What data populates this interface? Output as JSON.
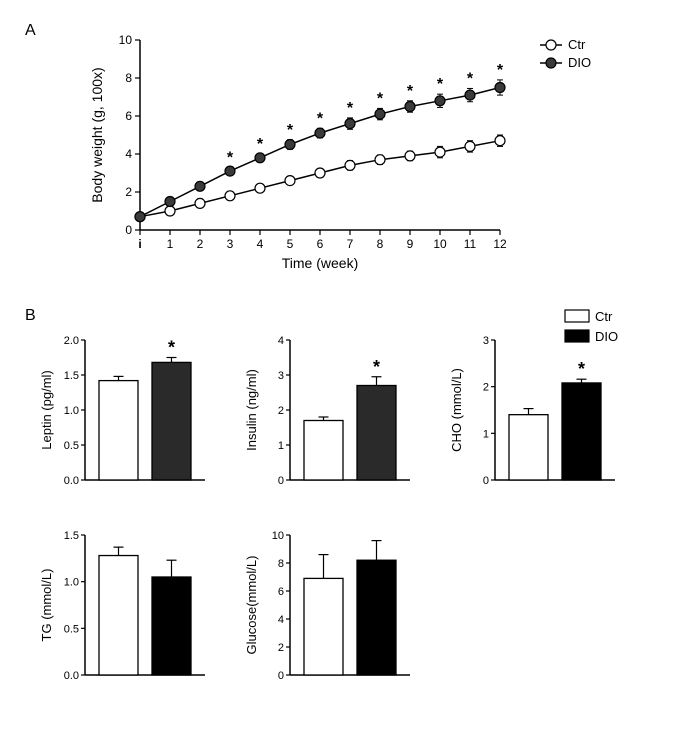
{
  "panelA": {
    "label": "A",
    "type": "line",
    "xlabel": "Time (week)",
    "ylabel": "Body weight (g, 100x)",
    "xlim": [
      0,
      12
    ],
    "ylim": [
      0,
      10
    ],
    "ytick_step": 2,
    "xticks": [
      "i",
      "1",
      "2",
      "3",
      "4",
      "5",
      "6",
      "7",
      "8",
      "9",
      "10",
      "11",
      "12"
    ],
    "label_fontsize": 14,
    "tick_fontsize": 12,
    "legend": {
      "items": [
        "Ctr",
        "DIO"
      ],
      "position": "right"
    },
    "series": [
      {
        "name": "Ctr",
        "marker": "open-circle",
        "color": "#000000",
        "fill": "#ffffff",
        "values": [
          0.7,
          1.0,
          1.4,
          1.8,
          2.2,
          2.6,
          3.0,
          3.4,
          3.7,
          3.9,
          4.1,
          4.4,
          4.7
        ],
        "errors": [
          0.05,
          0.1,
          0.15,
          0.15,
          0.2,
          0.2,
          0.2,
          0.25,
          0.25,
          0.25,
          0.3,
          0.3,
          0.3
        ]
      },
      {
        "name": "DIO",
        "marker": "filled-circle",
        "color": "#000000",
        "fill": "#3a3a3a",
        "values": [
          0.7,
          1.5,
          2.3,
          3.1,
          3.8,
          4.5,
          5.1,
          5.6,
          6.1,
          6.5,
          6.8,
          7.1,
          7.5
        ],
        "errors": [
          0.05,
          0.1,
          0.15,
          0.2,
          0.2,
          0.25,
          0.25,
          0.3,
          0.3,
          0.3,
          0.35,
          0.35,
          0.4
        ],
        "sig_marks": [
          null,
          null,
          null,
          "*",
          "*",
          "*",
          "*",
          "*",
          "*",
          "*",
          "*",
          "*",
          "*"
        ]
      }
    ],
    "background_color": "#ffffff",
    "line_width": 1.5,
    "marker_size": 5
  },
  "panelB": {
    "label": "B",
    "type": "bar-grid",
    "legend": {
      "items": [
        {
          "name": "Ctr",
          "fill": "#ffffff",
          "stroke": "#000000"
        },
        {
          "name": "DIO",
          "fill": "#000000",
          "stroke": "#000000"
        }
      ]
    },
    "bar_width": 0.6,
    "label_fontsize": 13,
    "tick_fontsize": 11,
    "charts": [
      {
        "ylabel": "Leptin (pg/ml)",
        "ylim": [
          0.0,
          2.0
        ],
        "ytick_step": 0.5,
        "bars": [
          {
            "group": "Ctr",
            "value": 1.42,
            "error": 0.06,
            "fill": "#ffffff"
          },
          {
            "group": "DIO",
            "value": 1.68,
            "error": 0.07,
            "fill": "#2a2a2a",
            "sig": "*"
          }
        ]
      },
      {
        "ylabel": "Insulin (ng/ml)",
        "ylim": [
          0.0,
          4.0
        ],
        "ytick_step": 1.0,
        "bars": [
          {
            "group": "Ctr",
            "value": 1.7,
            "error": 0.1,
            "fill": "#ffffff"
          },
          {
            "group": "DIO",
            "value": 2.7,
            "error": 0.25,
            "fill": "#2a2a2a",
            "sig": "*"
          }
        ]
      },
      {
        "ylabel": "CHO (mmol/L)",
        "ylim": [
          0,
          3
        ],
        "ytick_step": 1,
        "bars": [
          {
            "group": "Ctr",
            "value": 1.4,
            "error": 0.13,
            "fill": "#ffffff"
          },
          {
            "group": "DIO",
            "value": 2.08,
            "error": 0.08,
            "fill": "#000000",
            "sig": "*"
          }
        ]
      },
      {
        "ylabel": "TG (mmol/L)",
        "ylim": [
          0.0,
          1.5
        ],
        "ytick_step": 0.5,
        "bars": [
          {
            "group": "Ctr",
            "value": 1.28,
            "error": 0.09,
            "fill": "#ffffff"
          },
          {
            "group": "DIO",
            "value": 1.05,
            "error": 0.18,
            "fill": "#000000"
          }
        ]
      },
      {
        "ylabel": "Glucose(mmol/L)",
        "ylim": [
          0,
          10
        ],
        "ytick_step": 2,
        "bars": [
          {
            "group": "Ctr",
            "value": 6.9,
            "error": 1.7,
            "fill": "#ffffff"
          },
          {
            "group": "DIO",
            "value": 8.2,
            "error": 1.4,
            "fill": "#000000"
          }
        ]
      }
    ]
  }
}
